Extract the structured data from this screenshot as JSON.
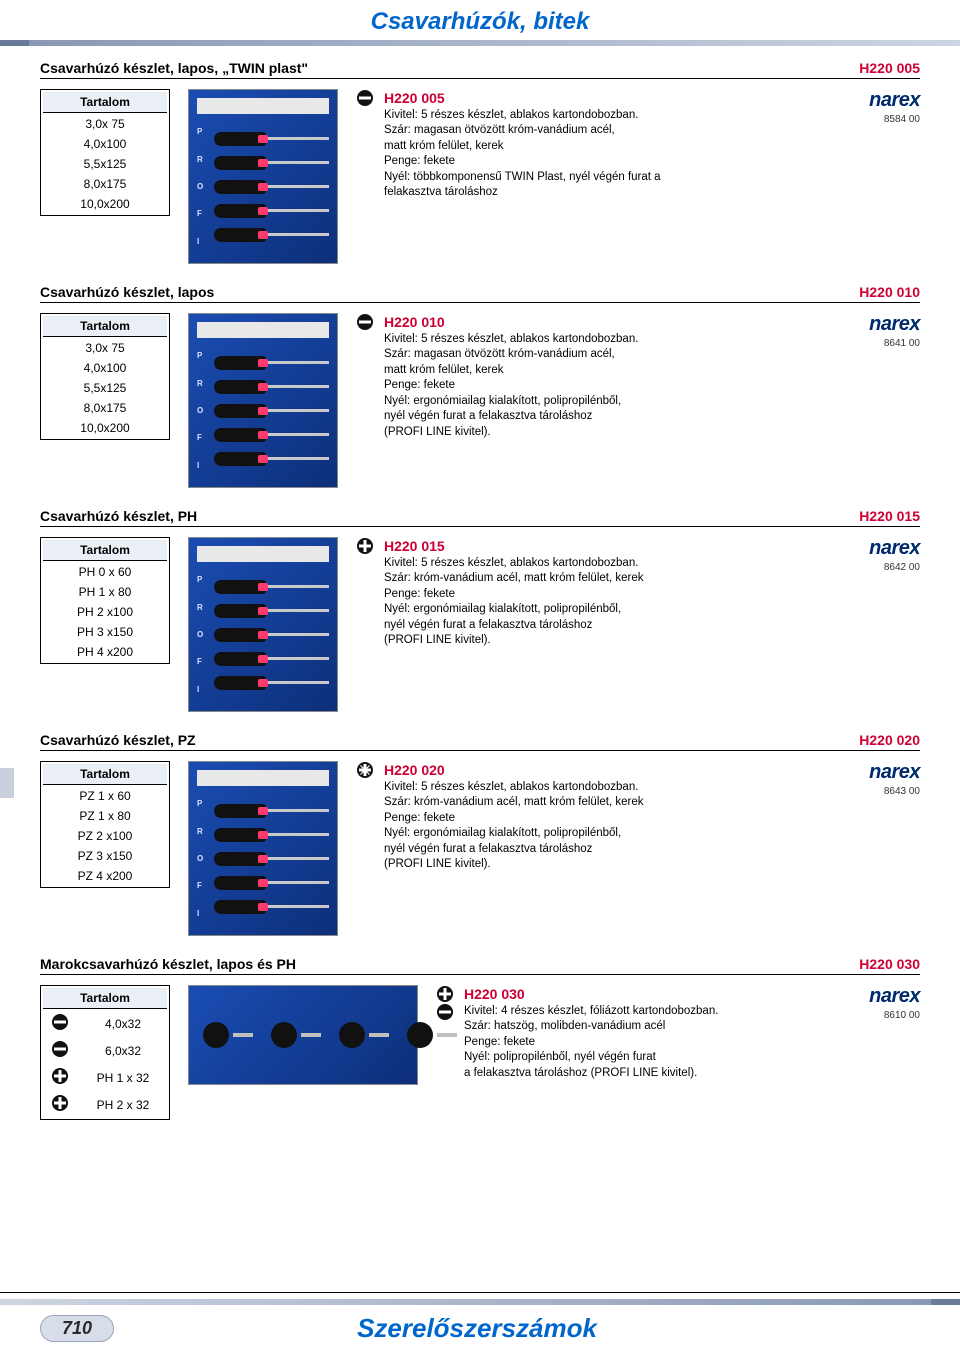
{
  "page_header": "Csavarhúzók, bitek",
  "footer_title": "Szerelőszerszámok",
  "page_number": "710",
  "brand": "narex",
  "sections": [
    {
      "title": "Csavarhúzó készlet, lapos, „TWIN plast\"",
      "code": "H220 005",
      "table_header": "Tartalom",
      "items": [
        "3,0x  75",
        "4,0x100",
        "5,5x125",
        "8,0x175",
        "10,0x200"
      ],
      "tip_icons": [
        "slot"
      ],
      "desc_code": "H220 005",
      "desc": "Kivitel: 5 részes készlet, ablakos kartondobozban.\nSzár: magasan ötvözött króm-vanádium acél,\nmatt króm felület, kerek\nPenge: fekete\nNyél: többkomponensű TWIN Plast, nyél végén furat a\nfelakasztva tároláshoz",
      "brand_code": "8584 00",
      "img": "tall"
    },
    {
      "title": "Csavarhúzó készlet, lapos",
      "code": "H220 010",
      "table_header": "Tartalom",
      "items": [
        "3,0x  75",
        "4,0x100",
        "5,5x125",
        "8,0x175",
        "10,0x200"
      ],
      "tip_icons": [
        "slot"
      ],
      "desc_code": "H220 010",
      "desc": "Kivitel: 5 részes készlet, ablakos kartondobozban.\nSzár: magasan ötvözött króm-vanádium acél,\nmatt króm felület, kerek\nPenge: fekete\nNyél: ergonómiailag kialakított, polipropilénből,\nnyél végén furat a felakasztva tároláshoz\n(PROFI LINE kivitel).",
      "brand_code": "8641 00",
      "img": "tall"
    },
    {
      "title": "Csavarhúzó készlet, PH",
      "code": "H220 015",
      "table_header": "Tartalom",
      "items": [
        "PH 0 x  60",
        "PH 1 x  80",
        "PH 2 x100",
        "PH 3 x150",
        "PH 4 x200"
      ],
      "tip_icons": [
        "ph"
      ],
      "desc_code": "H220 015",
      "desc": "Kivitel: 5 részes készlet, ablakos kartondobozban.\nSzár: króm-vanádium acél, matt króm felület, kerek\nPenge: fekete\nNyél: ergonómiailag kialakított, polipropilénből,\nnyél végén furat a felakasztva tároláshoz\n(PROFI LINE kivitel).",
      "brand_code": "8642 00",
      "img": "tall"
    },
    {
      "title": "Csavarhúzó készlet, PZ",
      "code": "H220 020",
      "table_header": "Tartalom",
      "items": [
        "PZ 1 x  60",
        "PZ 1 x  80",
        "PZ 2 x100",
        "PZ 3 x150",
        "PZ 4 x200"
      ],
      "tip_icons": [
        "pz"
      ],
      "desc_code": "H220 020",
      "desc": "Kivitel: 5 részes készlet, ablakos kartondobozban.\nSzár: króm-vanádium acél, matt króm felület, kerek\nPenge: fekete\nNyél: ergonómiailag kialakított, polipropilénből,\nnyél végén furat a felakasztva tároláshoz\n(PROFI LINE kivitel).",
      "brand_code": "8643 00",
      "img": "tall"
    },
    {
      "title": "Marokcsavarhúzó készlet, lapos és PH",
      "code": "H220 030",
      "table_header": "Tartalom",
      "items": [
        "4,0x32",
        "6,0x32",
        "PH 1 x 32",
        "PH 2 x 32"
      ],
      "row_icons": [
        "slot",
        "slot",
        "ph",
        "ph"
      ],
      "tip_icons": [
        "ph",
        "slot"
      ],
      "desc_code": "H220 030",
      "desc": "Kivitel: 4 részes készlet, fóliázott kartondobozban.\nSzár: hatszög, molibden-vanádium acél\nPenge: fekete\nNyél: polipropilénből, nyél végén furat\na felakasztva tároláshoz (PROFI LINE kivitel).",
      "brand_code": "8610 00",
      "img": "short"
    }
  ]
}
